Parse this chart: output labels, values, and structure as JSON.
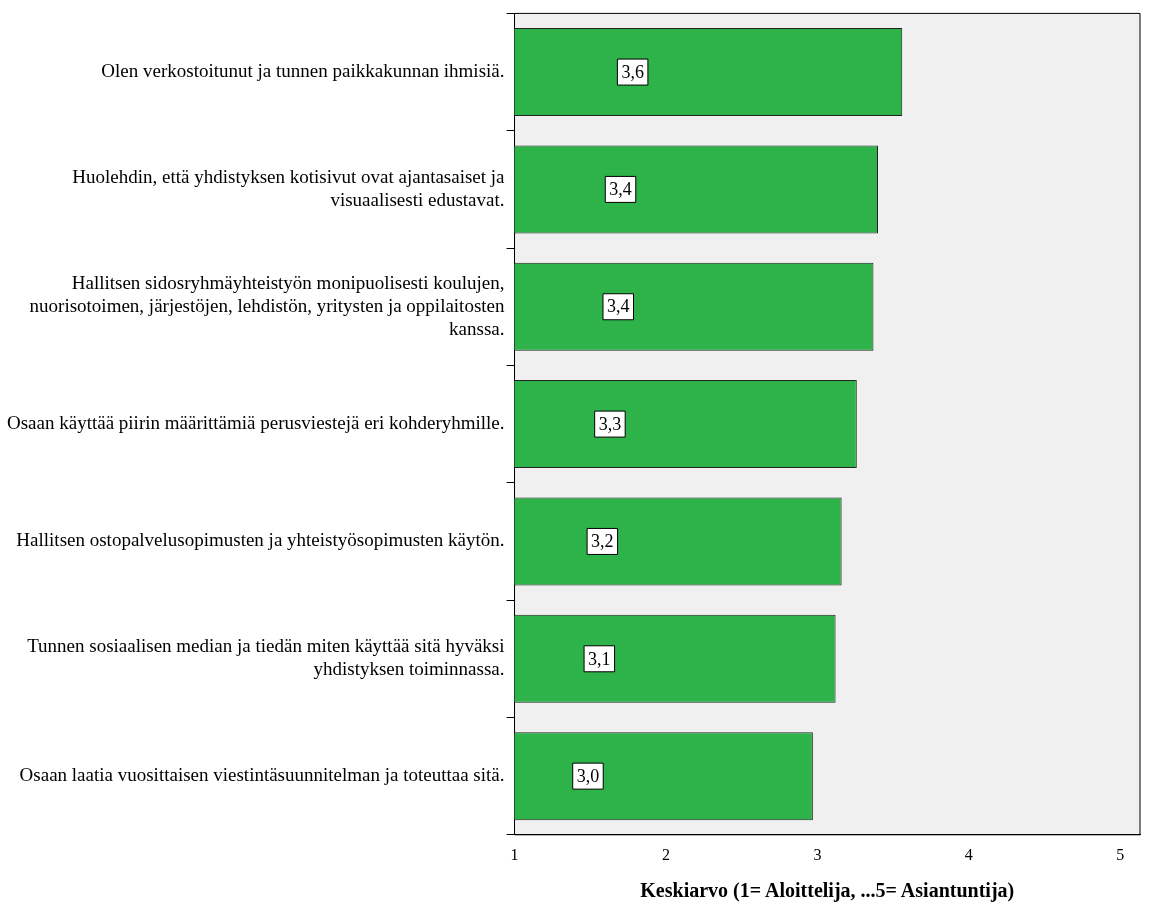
{
  "chart_data": {
    "type": "bar",
    "orientation": "horizontal",
    "categories": [
      "Olen verkostoitunut ja tunnen paikkakunnan ihmisiä.",
      "Huolehdin, että yhdistyksen kotisivut ovat ajantasaiset ja visuaalisesti edustavat.",
      "Hallitsen sidosryhmäyhteistyön monipuolisesti koulujen, nuorisotoimen, järjestöjen, lehdistön, yritysten ja oppilaitosten kanssa.",
      "Osaan käyttää piirin määrittämiä perusviestejä eri kohderyhmille.",
      "Hallitsen ostopalvelusopimusten ja yhteistyösopimusten käytön.",
      "Tunnen sosiaalisen median ja tiedän miten käyttää sitä hyväksi yhdistyksen toiminnassa.",
      "Osaan laatia vuosittaisen viestintäsuunnitelman ja toteuttaa sitä."
    ],
    "values": [
      3.56,
      3.4,
      3.37,
      3.26,
      3.16,
      3.12,
      2.97
    ],
    "value_labels": [
      "3,6",
      "3,4",
      "3,4",
      "3,3",
      "3,2",
      "3,1",
      "3,0"
    ],
    "color": "#2db34a",
    "xlim": [
      1,
      5.13
    ],
    "xticks": [
      1,
      2,
      3,
      4,
      5
    ],
    "xlabel": "Keskiarvo (1= Aloittelija, ...5= Asiantuntija)",
    "grid": false,
    "legend": false
  }
}
